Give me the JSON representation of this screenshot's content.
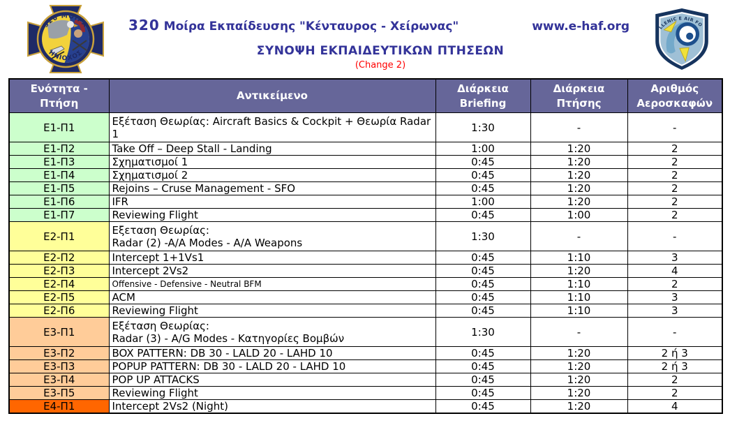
{
  "header": {
    "squadron_number": "320",
    "squadron_title": "Μοίρα Εκπαίδευσης \"Κένταυρος - Χείρωνας\"",
    "website": "www.e-haf.org",
    "page_title": "ΣΥΝΟΨΗ ΕΚΠΑΙΔΕΥΤΙΚΩΝ ΠΤΗΣΕΩΝ",
    "change_note": "(Change 2)",
    "left_emblem": {
      "top_text": "320 ΜΟΙΡΑ",
      "bottom_text": "ΗΝΙΟΧΟΣ"
    },
    "right_emblem": {
      "arc_text": "HELLENIC Ε AIR FORCE"
    }
  },
  "table": {
    "columns": [
      "Ενότητα - Πτήση",
      "Αντικείμενο",
      "Διάρκεια Briefing",
      "Διάρκεια Πτήσης",
      "Αριθμός Αεροσκαφών"
    ],
    "rows": [
      {
        "id": "Ε1-Π1",
        "subject": "Εξέταση Θεωρίας: Aircraft Basics & Cockpit + Θεωρία Radar 1",
        "briefing": "1:30",
        "flight": "-",
        "aircraft": "-",
        "group": "e1",
        "tall": true
      },
      {
        "id": "Ε1-Π2",
        "subject": "Take Off – Deep Stall - Landing",
        "briefing": "1:00",
        "flight": "1:20",
        "aircraft": "2",
        "group": "e1"
      },
      {
        "id": "Ε1-Π3",
        "subject": "Σχηματισμοί 1",
        "briefing": "0:45",
        "flight": "1:20",
        "aircraft": "2",
        "group": "e1"
      },
      {
        "id": "Ε1-Π4",
        "subject": "Σχηματισμοί 2",
        "briefing": "0:45",
        "flight": "1:20",
        "aircraft": "2",
        "group": "e1"
      },
      {
        "id": "Ε1-Π5",
        "subject": "Rejoins – Cruse Management - SFO",
        "briefing": "0:45",
        "flight": "1:20",
        "aircraft": "2",
        "group": "e1"
      },
      {
        "id": "Ε1-Π6",
        "subject": "IFR",
        "briefing": "1:00",
        "flight": "1:20",
        "aircraft": "2",
        "group": "e1"
      },
      {
        "id": "Ε1-Π7",
        "subject": "Reviewing Flight",
        "briefing": "0:45",
        "flight": "1:00",
        "aircraft": "2",
        "group": "e1"
      },
      {
        "id": "Ε2-Π1",
        "subject": "Εξεταση Θεωρίας:\nRadar (2) -A/A Modes - A/A Weapons",
        "briefing": "1:30",
        "flight": "-",
        "aircraft": "-",
        "group": "e2",
        "tall": true
      },
      {
        "id": "Ε2-Π2",
        "subject": "Intercept 1+1Vs1",
        "briefing": "0:45",
        "flight": "1:10",
        "aircraft": "3",
        "group": "e2"
      },
      {
        "id": "Ε2-Π3",
        "subject": "Intercept 2Vs2",
        "briefing": "0:45",
        "flight": "1:20",
        "aircraft": "4",
        "group": "e2"
      },
      {
        "id": "Ε2-Π4",
        "subject": "Offensive - Defensive - Neutral BFM",
        "briefing": "0:45",
        "flight": "1:10",
        "aircraft": "2",
        "group": "e2",
        "small": true
      },
      {
        "id": "Ε2-Π5",
        "subject": "ACM",
        "briefing": "0:45",
        "flight": "1:10",
        "aircraft": "3",
        "group": "e2"
      },
      {
        "id": "Ε2-Π6",
        "subject": "Reviewing Flight",
        "briefing": "0:45",
        "flight": "1:10",
        "aircraft": "3",
        "group": "e2"
      },
      {
        "id": "Ε3-Π1",
        "subject": "Εξέταση Θεωρίας:\nRadar (3) - A/G Modes - Κατηγορίες Βομβών",
        "briefing": "1:30",
        "flight": "-",
        "aircraft": "-",
        "group": "e3",
        "tall": true
      },
      {
        "id": "Ε3-Π2",
        "subject": "BOX PATTERN: DB 30 - LALD 20 - LAHD 10",
        "briefing": "0:45",
        "flight": "1:20",
        "aircraft": "2 ή 3",
        "group": "e3"
      },
      {
        "id": "Ε3-Π3",
        "subject": "POPUP PATTERN: DB 30 - LALD 20 - LAHD 10",
        "briefing": "0:45",
        "flight": "1:20",
        "aircraft": "2 ή 3",
        "group": "e3"
      },
      {
        "id": "Ε3-Π4",
        "subject": "POP UP ATTACKS",
        "briefing": "0:45",
        "flight": "1:20",
        "aircraft": "2",
        "group": "e3"
      },
      {
        "id": "Ε3-Π5",
        "subject": "Reviewing Flight",
        "briefing": "0:45",
        "flight": "1:20",
        "aircraft": "2",
        "group": "e3"
      },
      {
        "id": "Ε4-Π1",
        "subject": "Intercept 2Vs2 (Night)",
        "briefing": "0:45",
        "flight": "1:20",
        "aircraft": "4",
        "group": "e4"
      }
    ]
  },
  "colors": {
    "groups": {
      "e1": "#CCFFCC",
      "e2": "#FFFF99",
      "e3": "#FFCC99",
      "e4": "#FF6600"
    },
    "header_bg": "#666699",
    "title_text": "#333399",
    "change_text": "#FF0000",
    "border": "#000000"
  }
}
